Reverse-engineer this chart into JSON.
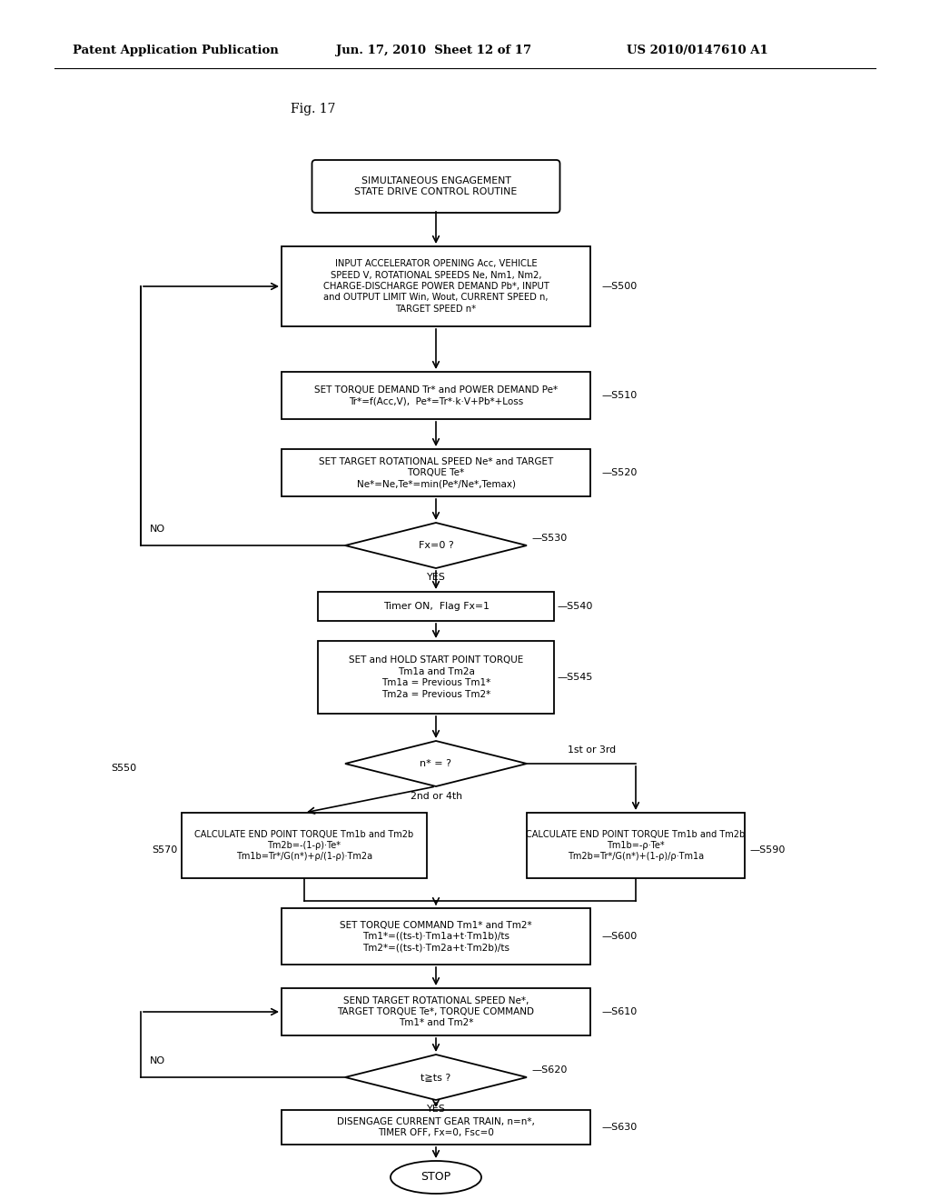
{
  "title_header_left": "Patent Application Publication",
  "title_header_mid": "Jun. 17, 2010  Sheet 12 of 17",
  "title_header_right": "US 2010/0147610 A1",
  "fig_label": "Fig. 17",
  "background_color": "#ffffff"
}
